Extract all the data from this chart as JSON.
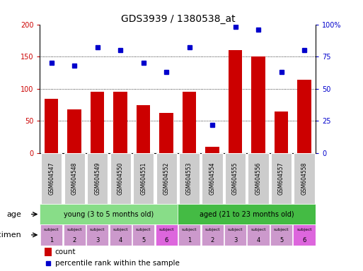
{
  "title": "GDS3939 / 1380538_at",
  "samples": [
    "GSM604547",
    "GSM604548",
    "GSM604549",
    "GSM604550",
    "GSM604551",
    "GSM604552",
    "GSM604553",
    "GSM604554",
    "GSM604555",
    "GSM604556",
    "GSM604557",
    "GSM604558"
  ],
  "count_values": [
    84,
    68,
    95,
    96,
    75,
    63,
    95,
    10,
    160,
    150,
    65,
    114
  ],
  "percentile_values": [
    70,
    68,
    82,
    80,
    70,
    63,
    82,
    22,
    98,
    96,
    63,
    80
  ],
  "ylim_left": [
    0,
    200
  ],
  "ylim_right": [
    0,
    100
  ],
  "yticks_left": [
    0,
    50,
    100,
    150,
    200
  ],
  "yticks_right": [
    0,
    25,
    50,
    75,
    100
  ],
  "ytick_labels_left": [
    "0",
    "50",
    "100",
    "150",
    "200"
  ],
  "ytick_labels_right": [
    "0",
    "25",
    "50",
    "75",
    "100%"
  ],
  "bar_color": "#cc0000",
  "percentile_color": "#0000cc",
  "age_groups": [
    {
      "label": "young (3 to 5 months old)",
      "start": 0,
      "end": 6,
      "color": "#88dd88"
    },
    {
      "label": "aged (21 to 23 months old)",
      "start": 6,
      "end": 12,
      "color": "#44bb44"
    }
  ],
  "specimen_colors": [
    "#cc99cc",
    "#cc99cc",
    "#cc99cc",
    "#cc99cc",
    "#cc99cc",
    "#dd66dd",
    "#cc99cc",
    "#cc99cc",
    "#cc99cc",
    "#cc99cc",
    "#cc99cc",
    "#dd66dd"
  ],
  "specimen_numbers": [
    "1",
    "2",
    "3",
    "4",
    "5",
    "6",
    "1",
    "2",
    "3",
    "4",
    "5",
    "6"
  ],
  "grid_color": "#000000",
  "background_color": "#ffffff",
  "xticklabel_bg": "#cccccc"
}
